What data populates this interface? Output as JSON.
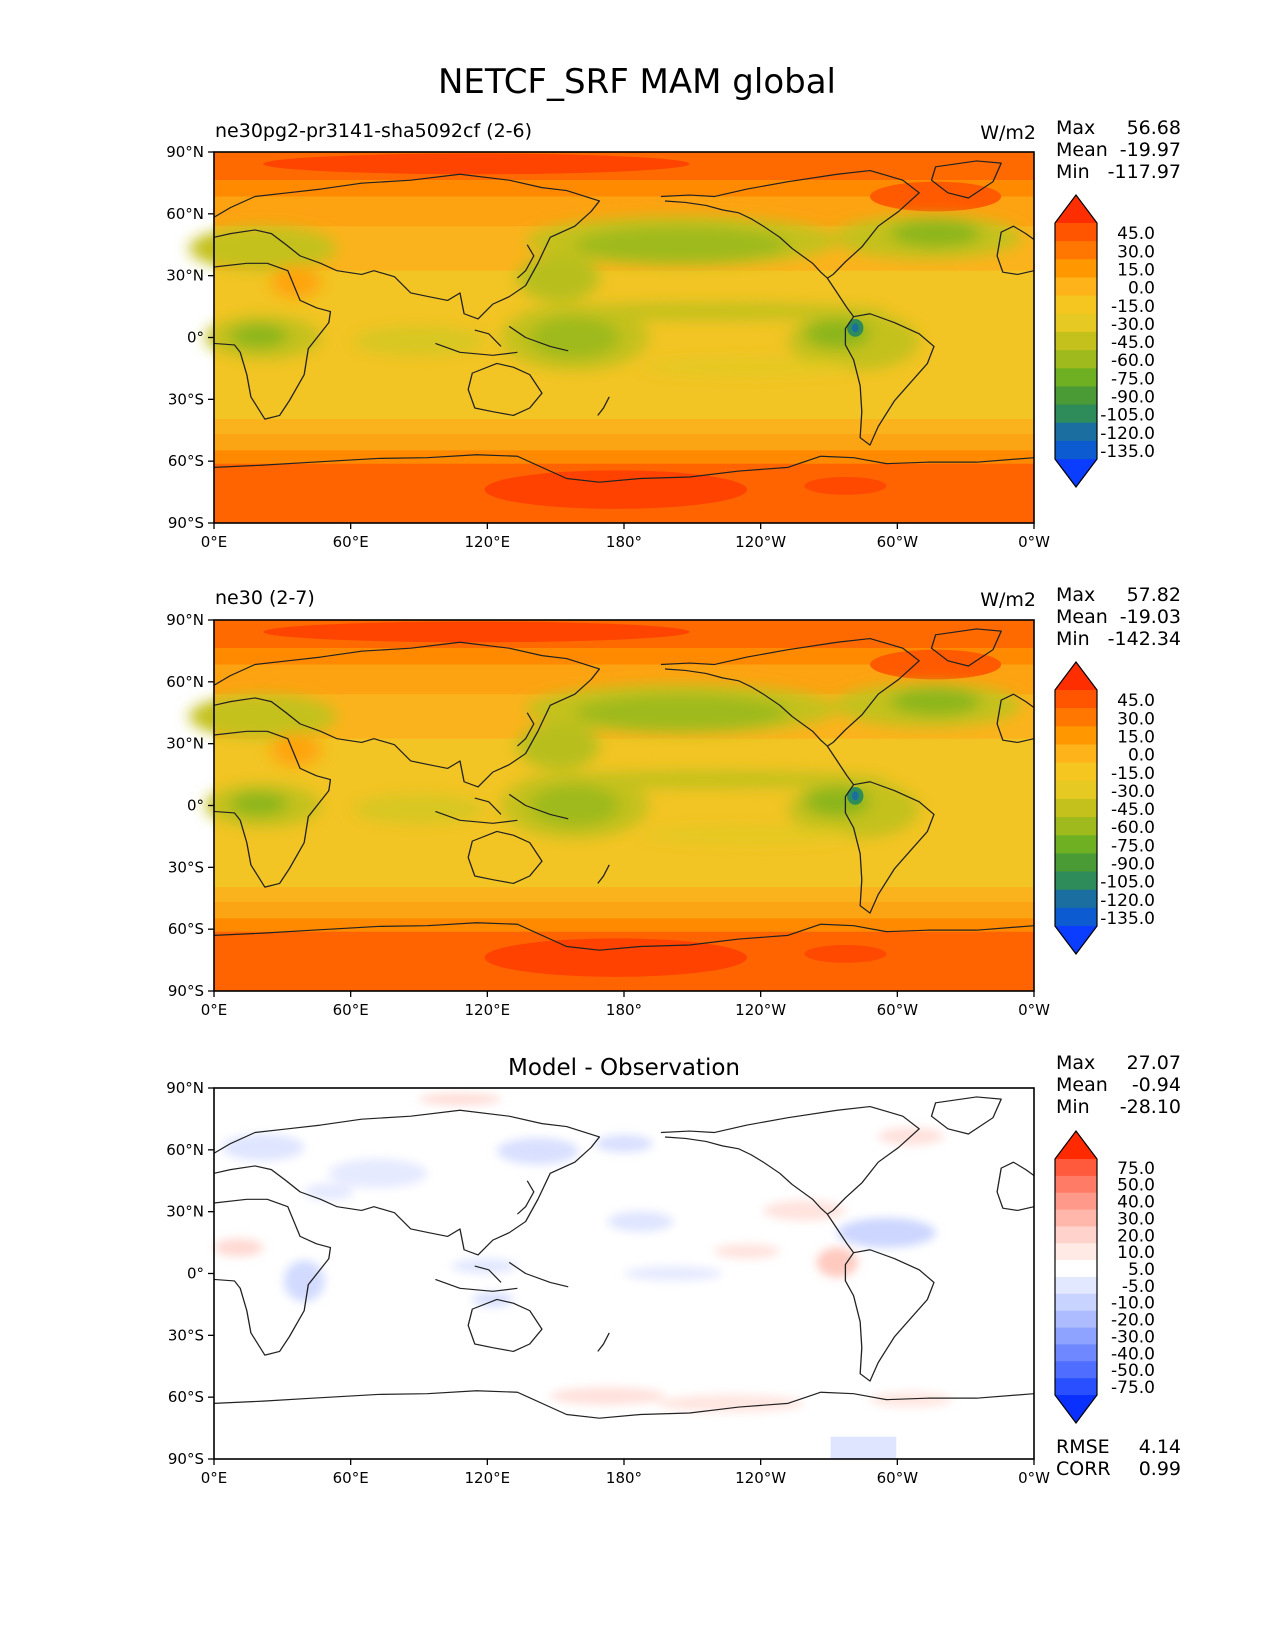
{
  "title": "NETCF_SRF MAM global",
  "colors": {
    "coast": "#222222",
    "diff_bg": "#ffffff"
  },
  "lat_ticks": [
    "90°N",
    "60°N",
    "30°N",
    "0°",
    "30°S",
    "60°S",
    "90°S"
  ],
  "lon_ticks": [
    "0°E",
    "60°E",
    "120°E",
    "180°",
    "120°W",
    "60°W",
    "0°W"
  ],
  "panels": [
    {
      "title_left": "ne30pg2-pr3141-sha5092cf (2-6)",
      "title_center": "",
      "units": "W/m2",
      "stats": [
        {
          "label": "Max",
          "value": "56.68"
        },
        {
          "label": "Mean",
          "value": "-19.97"
        },
        {
          "label": "Min",
          "value": "-117.97"
        }
      ],
      "colorbar": {
        "labels": [
          "45.0",
          "30.0",
          "15.0",
          "0.0",
          "-15.0",
          "-30.0",
          "-45.0",
          "-60.0",
          "-75.0",
          "-90.0",
          "-105.0",
          "-120.0",
          "-135.0"
        ],
        "colors": [
          "#ff2e00",
          "#ff5500",
          "#ff7700",
          "#ff9700",
          "#fdb319",
          "#f4c61f",
          "#e6c922",
          "#c4c11c",
          "#9fba1d",
          "#6faf22",
          "#4a9a35",
          "#2e8b5a",
          "#1a6fa0",
          "#0d5bd0",
          "#0a3dff"
        ]
      },
      "extra_stats": []
    },
    {
      "title_left": "ne30 (2-7)",
      "title_center": "",
      "units": "W/m2",
      "stats": [
        {
          "label": "Max",
          "value": "57.82"
        },
        {
          "label": "Mean",
          "value": "-19.03"
        },
        {
          "label": "Min",
          "value": "-142.34"
        }
      ],
      "colorbar": {
        "labels": [
          "45.0",
          "30.0",
          "15.0",
          "0.0",
          "-15.0",
          "-30.0",
          "-45.0",
          "-60.0",
          "-75.0",
          "-90.0",
          "-105.0",
          "-120.0",
          "-135.0"
        ],
        "colors": [
          "#ff2e00",
          "#ff5500",
          "#ff7700",
          "#ff9700",
          "#fdb319",
          "#f4c61f",
          "#e6c922",
          "#c4c11c",
          "#9fba1d",
          "#6faf22",
          "#4a9a35",
          "#2e8b5a",
          "#1a6fa0",
          "#0d5bd0",
          "#0a3dff"
        ]
      },
      "extra_stats": []
    },
    {
      "title_left": "",
      "title_center": "Model - Observation",
      "units": "",
      "stats": [
        {
          "label": "Max",
          "value": "27.07"
        },
        {
          "label": "Mean",
          "value": "-0.94"
        },
        {
          "label": "Min",
          "value": "-28.10"
        }
      ],
      "colorbar": {
        "labels": [
          "75.0",
          "50.0",
          "40.0",
          "30.0",
          "20.0",
          "10.0",
          "5.0",
          "-5.0",
          "-10.0",
          "-20.0",
          "-30.0",
          "-40.0",
          "-50.0",
          "-75.0"
        ],
        "colors": [
          "#ff2a00",
          "#ff5a3c",
          "#ff7b66",
          "#ff9a8a",
          "#ffb6ab",
          "#ffd3cc",
          "#ffeae6",
          "#ffffff",
          "#e2e8ff",
          "#c9d3ff",
          "#adbcff",
          "#8ea3ff",
          "#6f88ff",
          "#4f6dff",
          "#2a4fff",
          "#0a30ff"
        ]
      },
      "extra_stats": [
        {
          "label": "RMSE",
          "value": "4.14"
        },
        {
          "label": "CORR",
          "value": "0.99"
        }
      ]
    }
  ]
}
